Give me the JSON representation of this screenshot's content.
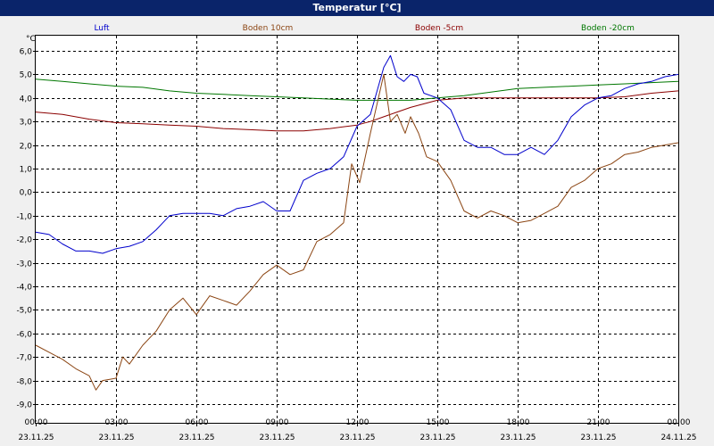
{
  "window": {
    "title": "Temperatur [°C]"
  },
  "chart_data": {
    "type": "line",
    "ylabel": "°C",
    "ylim": [
      -9.0,
      6.0
    ],
    "yticks": [
      "6,0",
      "5,0",
      "4,0",
      "3,0",
      "2,0",
      "1,0",
      "0,0",
      "-1,0",
      "-2,0",
      "-3,0",
      "-4,0",
      "-5,0",
      "-6,0",
      "-7,0",
      "-8,0",
      "-9,0"
    ],
    "xlim": [
      0,
      24
    ],
    "xticks": [
      {
        "time": "00:00",
        "date": "23.11.25"
      },
      {
        "time": "03:00",
        "date": "23.11.25"
      },
      {
        "time": "06:00",
        "date": "23.11.25"
      },
      {
        "time": "09:00",
        "date": "23.11.25"
      },
      {
        "time": "12:00",
        "date": "23.11.25"
      },
      {
        "time": "15:00",
        "date": "23.11.25"
      },
      {
        "time": "18:00",
        "date": "23.11.25"
      },
      {
        "time": "21:00",
        "date": "23.11.25"
      },
      {
        "time": "00:00",
        "date": "24.11.25"
      }
    ],
    "grid": true,
    "colors": {
      "Luft": "#0000cc",
      "Boden 10cm": "#8b4513",
      "Boden -5cm": "#8b0000",
      "Boden -20cm": "#007700"
    },
    "series": [
      {
        "name": "Luft",
        "x": [
          0,
          0.5,
          1,
          1.5,
          2,
          2.5,
          3,
          3.5,
          4,
          4.5,
          5,
          5.5,
          6,
          6.5,
          7,
          7.5,
          8,
          8.5,
          9,
          9.5,
          10,
          10.5,
          11,
          11.5,
          12,
          12.5,
          13,
          13.25,
          13.5,
          13.75,
          14,
          14.25,
          14.5,
          15,
          15.5,
          16,
          16.5,
          17,
          17.5,
          18,
          18.5,
          19,
          19.5,
          20,
          20.5,
          21,
          21.5,
          22,
          22.5,
          23,
          23.5,
          24
        ],
        "y": [
          -1.7,
          -1.8,
          -2.2,
          -2.5,
          -2.5,
          -2.6,
          -2.4,
          -2.3,
          -2.1,
          -1.6,
          -1.0,
          -0.9,
          -0.9,
          -0.9,
          -1.0,
          -0.7,
          -0.6,
          -0.4,
          -0.8,
          -0.8,
          0.5,
          0.8,
          1.0,
          1.5,
          2.8,
          3.3,
          5.3,
          5.8,
          4.9,
          4.7,
          5.0,
          4.9,
          4.2,
          4.0,
          3.5,
          2.2,
          1.9,
          1.9,
          1.6,
          1.6,
          1.9,
          1.6,
          2.2,
          3.2,
          3.7,
          4.0,
          4.1,
          4.4,
          4.6,
          4.7,
          4.9,
          5.0
        ]
      },
      {
        "name": "Boden 10cm",
        "x": [
          0,
          0.5,
          1,
          1.5,
          2,
          2.25,
          2.5,
          3,
          3.25,
          3.5,
          4,
          4.5,
          5,
          5.5,
          6,
          6.5,
          7,
          7.5,
          8,
          8.5,
          9,
          9.5,
          10,
          10.5,
          11,
          11.5,
          11.8,
          12.1,
          12.5,
          13,
          13.25,
          13.5,
          13.8,
          14,
          14.3,
          14.6,
          15,
          15.5,
          16,
          16.5,
          17,
          17.5,
          18,
          18.5,
          19,
          19.5,
          20,
          20.5,
          21,
          21.5,
          22,
          22.5,
          23,
          23.5,
          24
        ],
        "y": [
          -6.5,
          -6.8,
          -7.1,
          -7.5,
          -7.8,
          -8.4,
          -8.0,
          -7.9,
          -7.0,
          -7.3,
          -6.5,
          -5.9,
          -5.0,
          -4.5,
          -5.2,
          -4.4,
          -4.6,
          -4.8,
          -4.2,
          -3.5,
          -3.1,
          -3.5,
          -3.3,
          -2.1,
          -1.8,
          -1.3,
          1.2,
          0.4,
          2.5,
          5.0,
          3.0,
          3.3,
          2.5,
          3.2,
          2.5,
          1.5,
          1.3,
          0.5,
          -0.8,
          -1.1,
          -0.8,
          -1.0,
          -1.3,
          -1.2,
          -0.9,
          -0.6,
          0.2,
          0.5,
          1.0,
          1.2,
          1.6,
          1.7,
          1.9,
          2.0,
          2.1
        ]
      },
      {
        "name": "Boden -5cm",
        "x": [
          0,
          1,
          2,
          3,
          4,
          5,
          6,
          7,
          8,
          9,
          10,
          11,
          12,
          12.5,
          13,
          13.5,
          14,
          15,
          16,
          17,
          18,
          19,
          20,
          21,
          22,
          23,
          24
        ],
        "y": [
          3.4,
          3.3,
          3.1,
          2.95,
          2.9,
          2.85,
          2.8,
          2.7,
          2.65,
          2.6,
          2.6,
          2.7,
          2.85,
          3.0,
          3.2,
          3.4,
          3.6,
          3.9,
          4.0,
          4.0,
          4.0,
          4.0,
          4.0,
          4.0,
          4.05,
          4.2,
          4.3
        ]
      },
      {
        "name": "Boden -20cm",
        "x": [
          0,
          1,
          2,
          3,
          4,
          5,
          6,
          7,
          8,
          9,
          10,
          11,
          12,
          13,
          14,
          15,
          16,
          17,
          18,
          19,
          20,
          21,
          22,
          23,
          24
        ],
        "y": [
          4.8,
          4.7,
          4.6,
          4.5,
          4.45,
          4.3,
          4.2,
          4.15,
          4.1,
          4.05,
          4.0,
          3.95,
          3.9,
          3.9,
          3.9,
          4.0,
          4.1,
          4.25,
          4.4,
          4.45,
          4.5,
          4.55,
          4.6,
          4.65,
          4.7
        ]
      }
    ]
  }
}
